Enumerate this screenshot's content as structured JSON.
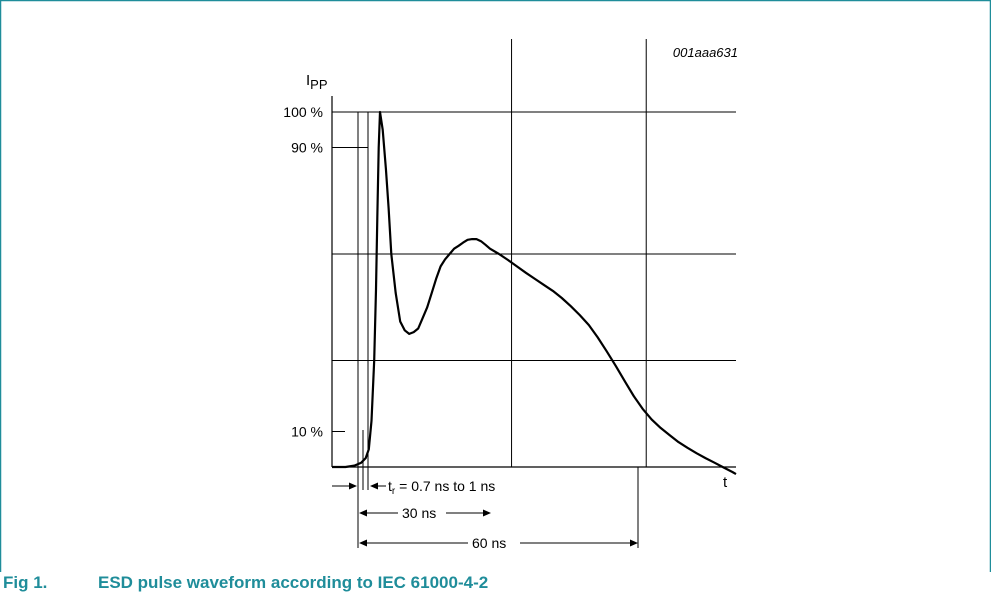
{
  "figure": {
    "code": "001aaa631",
    "caption_number": "Fig 1.",
    "caption_text": "ESD pulse waveform according to IEC 61000-4-2",
    "accent_color": "#1f8d9a"
  },
  "chart_data": {
    "type": "line",
    "title": "",
    "ylabel_main": "I",
    "ylabel_sub": "PP",
    "xlabel": "t",
    "ylim": [
      0,
      100
    ],
    "y_ticks": [
      {
        "value": 100,
        "label": "100 %"
      },
      {
        "value": 90,
        "label": "90 %"
      },
      {
        "value": 10,
        "label": "10 %"
      }
    ],
    "grid_y": [
      100,
      60,
      30
    ],
    "grid_x_ns": [
      30,
      60
    ],
    "x_unit": "ns",
    "x_range_ns": [
      -10,
      80
    ],
    "series": [
      {
        "values_x_ns": [
          -10,
          -7,
          -5,
          -3.5,
          -2.5,
          -1.8,
          -1.2,
          -0.6,
          -0.2,
          0.1,
          0.4,
          0.7,
          1.3,
          2,
          2.6,
          3.2,
          4.2,
          5.2,
          6.2,
          7.2,
          8.2,
          9.2,
          10.2,
          11.2,
          12.2,
          13.2,
          14.2,
          15.2,
          16.2,
          17.2,
          18.2,
          19.2,
          20.2,
          21.2,
          22.2,
          23.2,
          24.2,
          25.2,
          27.2,
          29.2,
          31.2,
          33.2,
          35.2,
          37.2,
          39.2,
          41.2,
          43.2,
          45.2,
          47.2,
          49.2,
          51.2,
          53.2,
          55.2,
          57.2,
          59.2,
          61.2,
          63.2,
          65.2,
          67.2,
          69.2,
          71.2,
          73.2,
          75.2,
          77.2,
          79.2,
          80
        ],
        "values_y_pct": [
          0,
          0,
          0.4,
          1.2,
          2.5,
          5,
          13,
          30,
          50,
          70,
          90,
          100,
          95,
          84,
          73,
          60,
          49,
          41,
          38.5,
          37.5,
          38,
          39,
          42,
          45,
          49,
          53,
          56.5,
          58.5,
          60,
          61.5,
          62.3,
          63.2,
          64,
          64.2,
          64.2,
          63.6,
          62.6,
          61.5,
          60,
          58.3,
          56.5,
          54.7,
          53,
          51.3,
          49.6,
          47.6,
          45.3,
          42.8,
          40,
          36.5,
          32.6,
          28.5,
          24.2,
          20,
          16.4,
          13.4,
          11,
          9,
          7,
          5.4,
          3.9,
          2.5,
          1.2,
          -0.1,
          -1.4,
          -2
        ]
      }
    ],
    "annotations": [
      {
        "label_main": "t",
        "label_sub": "r",
        "label_rest": " = 0.7 ns to 1 ns"
      },
      {
        "label": "30 ns"
      },
      {
        "label": "60 ns"
      }
    ]
  }
}
